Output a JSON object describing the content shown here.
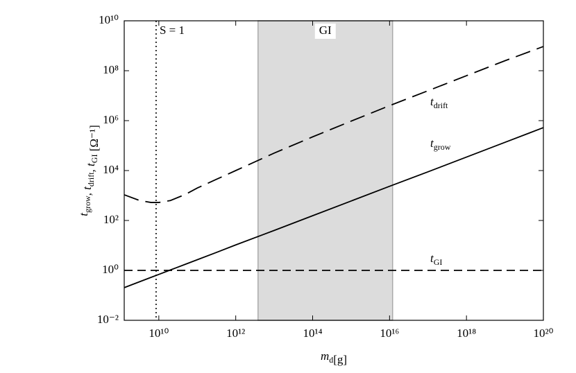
{
  "chart_data": {
    "type": "line",
    "xlabel": "md[g]",
    "ylabel": "tgrow, tdrift, tGI [Ω⁻¹]",
    "xscale": "log",
    "yscale": "log",
    "xlim": [
      1260000000.0,
      1e+20
    ],
    "ylim": [
      0.01,
      10000000000.0
    ],
    "xticks": [
      {
        "value": 10000000000.0,
        "label": "10¹⁰"
      },
      {
        "value": 1000000000000.0,
        "label": "10¹²"
      },
      {
        "value": 100000000000000.0,
        "label": "10¹⁴"
      },
      {
        "value": 1e+16,
        "label": "10¹⁶"
      },
      {
        "value": 1e+18,
        "label": "10¹⁸"
      },
      {
        "value": 1e+20,
        "label": "10²⁰"
      }
    ],
    "yticks": [
      {
        "value": 0.01,
        "label": "10⁻²"
      },
      {
        "value": 1,
        "label": "10⁰"
      },
      {
        "value": 100,
        "label": "10²"
      },
      {
        "value": 10000,
        "label": "10⁴"
      },
      {
        "value": 1000000,
        "label": "10⁶"
      },
      {
        "value": 100000000,
        "label": "10⁸"
      },
      {
        "value": 10000000000,
        "label": "10¹⁰"
      }
    ],
    "x": [
      1260000000.0,
      3160000000.0,
      6310000000.0,
      10000000000.0,
      20000000000.0,
      50000000000.0,
      100000000000.0,
      316000000000.0,
      1000000000000.0,
      10000000000000.0,
      100000000000000.0,
      1000000000000000.0,
      1e+16,
      1e+17,
      1e+18,
      1e+19,
      1e+20
    ],
    "series": [
      {
        "name": "tdrift",
        "color": "#000000",
        "dash": "22,10",
        "values": [
          1070,
          631,
          525,
          525,
          631,
          1120,
          2000,
          4470,
          10000,
          50100,
          224000,
          955000,
          3980000,
          15800000,
          63100000,
          251000000,
          933000000
        ]
      },
      {
        "name": "tgrow",
        "color": "#000000",
        "dash": "none",
        "values": [
          0.204,
          0.351,
          0.527,
          0.69,
          1.04,
          1.78,
          2.67,
          5.25,
          10.5,
          39.8,
          155,
          603,
          2340,
          8910,
          34700,
          135000,
          525000
        ]
      },
      {
        "name": "tGI",
        "color": "#000000",
        "dash": "12,7",
        "values": [
          1,
          1,
          1,
          1,
          1,
          1,
          1,
          1,
          1,
          1,
          1,
          1,
          1,
          1,
          1,
          1,
          1
        ]
      }
    ],
    "region": {
      "label": "GI",
      "x0": 3800000000000.0,
      "x1": 1.2e+16,
      "color": "#dcdcdc"
    },
    "vline": {
      "label": "S = 1",
      "x": 8500000000.0
    }
  }
}
